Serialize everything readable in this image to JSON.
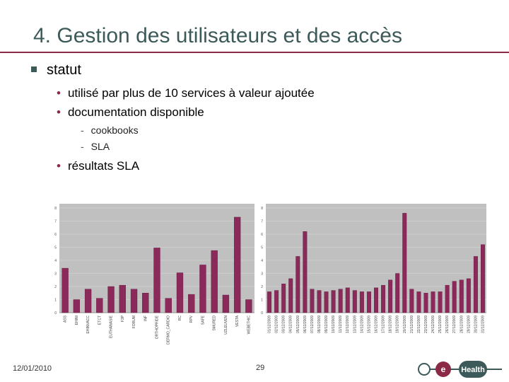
{
  "slide": {
    "title": "4. Gestion des utilisateurs et des accès",
    "bullet1": "statut",
    "sub1": "utilisé par plus de 10 services à valeur ajoutée",
    "sub2": "documentation disponible",
    "sub2_items": [
      "cookbooks",
      "SLA"
    ],
    "sub3": "résultats SLA",
    "footer_date": "12/01/2010",
    "page_number": "29",
    "logo_letter": "e",
    "logo_text": "Health"
  },
  "colors": {
    "accent": "#8b2a47",
    "title": "#3c5a59",
    "bar": "#8b2a5a",
    "plot_bg": "#c0c0c0"
  },
  "chart_data": [
    {
      "type": "bar",
      "categories": [
        "ASS",
        "EHINI",
        "EHINVACC",
        "ETCT",
        "EUTHANASIE",
        "F3P",
        "FORUM",
        "INF",
        "ORTHOPRIDE",
        "DERMO_CARDIO",
        "RC",
        "RPV",
        "SAFE",
        "SMURED",
        "UZLEUVEN",
        "VESTA",
        "WEBETHIC"
      ],
      "values": [
        3.4,
        1.0,
        1.8,
        1.1,
        2.0,
        2.1,
        1.8,
        1.5,
        4.95,
        1.1,
        3.05,
        1.4,
        3.65,
        4.75,
        1.35,
        7.3,
        1.0
      ],
      "yticks": [
        "0",
        "1",
        "2",
        "3",
        "4",
        "5",
        "6",
        "7",
        "8"
      ],
      "ylim": [
        0,
        8
      ]
    },
    {
      "type": "bar",
      "categories": [
        "01/12/2009",
        "02/12/2009",
        "03/12/2009",
        "04/12/2009",
        "05/12/2009",
        "06/12/2009",
        "07/12/2009",
        "08/12/2009",
        "09/12/2009",
        "10/12/2009",
        "11/12/2009",
        "12/12/2009",
        "13/12/2009",
        "14/12/2009",
        "15/12/2009",
        "16/12/2009",
        "17/12/2009",
        "18/12/2009",
        "19/12/2009",
        "20/12/2009",
        "21/12/2009",
        "22/12/2009",
        "23/12/2009",
        "24/12/2009",
        "25/12/2009",
        "26/12/2009",
        "27/12/2009",
        "28/12/2009",
        "29/12/2009",
        "30/12/2009",
        "31/12/2009"
      ],
      "values": [
        1.6,
        1.7,
        2.2,
        2.6,
        4.3,
        6.2,
        1.8,
        1.7,
        1.6,
        1.7,
        1.8,
        1.9,
        1.7,
        1.6,
        1.6,
        1.9,
        2.1,
        2.5,
        3.0,
        7.6,
        1.8,
        1.6,
        1.5,
        1.6,
        1.6,
        2.1,
        2.4,
        2.5,
        2.6,
        4.3,
        5.2
      ],
      "yticks": [
        "0",
        "1",
        "2",
        "3",
        "4",
        "5",
        "6",
        "7",
        "8"
      ],
      "ylim": [
        0,
        8
      ]
    }
  ]
}
